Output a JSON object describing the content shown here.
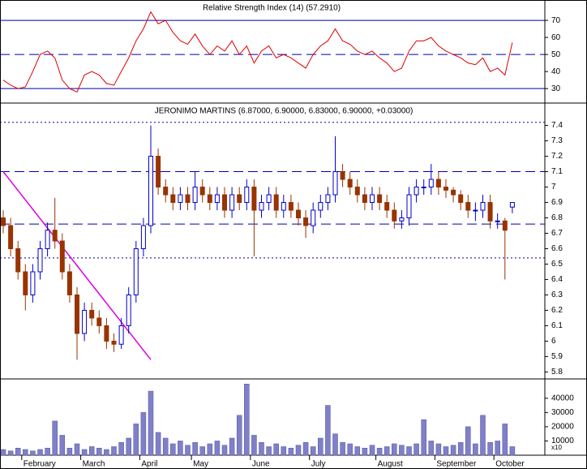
{
  "chart_data": [
    {
      "type": "line",
      "title": "Relative Strength Index (14) (57.2910)",
      "color": "#dd0000",
      "ylim": [
        22,
        81
      ],
      "yticks": [
        30,
        40,
        50,
        60,
        70
      ],
      "levels": [
        {
          "value": 70,
          "style": "solid"
        },
        {
          "value": 50,
          "style": "dashed"
        },
        {
          "value": 30,
          "style": "solid"
        }
      ],
      "values": [
        35,
        32,
        30,
        31,
        40,
        50,
        52,
        48,
        35,
        30,
        28,
        38,
        40,
        38,
        33,
        32,
        40,
        48,
        58,
        65,
        75,
        68,
        70,
        63,
        58,
        56,
        62,
        55,
        50,
        55,
        52,
        58,
        50,
        55,
        45,
        52,
        55,
        48,
        50,
        48,
        45,
        42,
        50,
        55,
        58,
        65,
        58,
        56,
        52,
        50,
        52,
        48,
        45,
        40,
        42,
        52,
        58,
        58,
        60,
        55,
        52,
        50,
        48,
        45,
        44,
        48,
        40,
        42,
        38,
        57
      ]
    },
    {
      "type": "candlestick",
      "title": "JERONIMO MARTINS (6.87000, 6.90000, 6.83000, 6.90000, +0.03000)",
      "up_color": "#0000cc",
      "down_color": "#993300",
      "ylim": [
        5.76,
        7.54
      ],
      "yticks": [
        5.8,
        5.9,
        6.0,
        6.1,
        6.2,
        6.3,
        6.4,
        6.5,
        6.6,
        6.7,
        6.8,
        6.9,
        7.0,
        7.1,
        7.2,
        7.3,
        7.4
      ],
      "levels": [
        {
          "value": 7.42,
          "style": "dotted"
        },
        {
          "value": 7.1,
          "style": "dashed"
        },
        {
          "value": 6.76,
          "style": "dashed"
        },
        {
          "value": 6.54,
          "style": "dotted"
        }
      ],
      "trendline": {
        "color": "#dd00dd",
        "x": [
          0,
          20
        ],
        "values": [
          7.1,
          5.88
        ]
      },
      "open": [
        6.8,
        6.75,
        6.6,
        6.45,
        6.3,
        6.45,
        6.6,
        6.72,
        6.65,
        6.45,
        6.3,
        6.05,
        6.2,
        6.15,
        6.1,
        6.0,
        5.98,
        6.1,
        6.3,
        6.6,
        6.75,
        7.2,
        7.0,
        6.95,
        6.9,
        6.95,
        6.9,
        7.0,
        6.95,
        6.9,
        6.95,
        6.85,
        6.95,
        6.9,
        7.0,
        6.85,
        6.9,
        6.95,
        6.85,
        6.9,
        6.85,
        6.8,
        6.75,
        6.85,
        6.9,
        6.95,
        7.1,
        7.05,
        7.0,
        6.95,
        6.9,
        6.95,
        6.9,
        6.85,
        6.78,
        6.8,
        6.95,
        7.0,
        7.0,
        7.05,
        7.0,
        6.98,
        6.95,
        6.9,
        6.85,
        6.85,
        6.9,
        6.78,
        6.78,
        6.87
      ],
      "high": [
        6.85,
        6.8,
        6.65,
        6.5,
        6.5,
        6.65,
        6.77,
        6.93,
        6.7,
        6.5,
        6.35,
        6.25,
        6.25,
        6.2,
        6.15,
        6.05,
        6.15,
        6.35,
        6.65,
        6.8,
        7.4,
        7.25,
        7.05,
        7.0,
        7.0,
        7.0,
        7.1,
        7.05,
        7.0,
        7.0,
        7.0,
        7.0,
        7.0,
        7.05,
        7.05,
        6.95,
        7.0,
        7.0,
        6.95,
        6.95,
        6.9,
        6.85,
        6.9,
        6.95,
        7.0,
        7.33,
        7.15,
        7.1,
        7.05,
        7.0,
        7.0,
        7.0,
        6.95,
        6.9,
        6.85,
        7.0,
        7.05,
        7.05,
        7.15,
        7.1,
        7.05,
        7.0,
        6.98,
        6.95,
        6.9,
        6.95,
        6.95,
        6.83,
        6.8,
        6.9
      ],
      "low": [
        6.7,
        6.55,
        6.4,
        6.2,
        6.25,
        6.4,
        6.55,
        6.6,
        6.4,
        6.25,
        5.88,
        6.0,
        6.1,
        6.05,
        5.95,
        5.93,
        5.95,
        6.05,
        6.25,
        6.55,
        6.7,
        6.95,
        6.9,
        6.85,
        6.85,
        6.85,
        6.85,
        6.9,
        6.85,
        6.85,
        6.8,
        6.8,
        6.85,
        6.85,
        6.55,
        6.8,
        6.85,
        6.8,
        6.8,
        6.8,
        6.75,
        6.67,
        6.7,
        6.8,
        6.85,
        6.9,
        7.0,
        6.95,
        6.9,
        6.85,
        6.85,
        6.85,
        6.8,
        6.73,
        6.73,
        6.75,
        6.9,
        6.95,
        6.95,
        6.95,
        6.93,
        6.9,
        6.85,
        6.8,
        6.78,
        6.8,
        6.73,
        6.73,
        6.4,
        6.83
      ],
      "close": [
        6.75,
        6.6,
        6.45,
        6.3,
        6.45,
        6.6,
        6.72,
        6.65,
        6.45,
        6.3,
        6.05,
        6.2,
        6.15,
        6.1,
        6.0,
        5.98,
        6.1,
        6.3,
        6.6,
        6.75,
        7.2,
        7.0,
        6.95,
        6.9,
        6.95,
        6.9,
        7.0,
        6.95,
        6.9,
        6.95,
        6.85,
        6.95,
        6.9,
        7.0,
        6.85,
        6.9,
        6.95,
        6.85,
        6.9,
        6.85,
        6.8,
        6.75,
        6.85,
        6.9,
        6.95,
        7.1,
        7.05,
        7.0,
        6.95,
        6.9,
        6.95,
        6.9,
        6.85,
        6.78,
        6.8,
        6.95,
        7.0,
        7.0,
        7.05,
        7.0,
        6.98,
        6.95,
        6.9,
        6.85,
        6.85,
        6.9,
        6.78,
        6.78,
        6.72,
        6.9
      ]
    },
    {
      "type": "bar",
      "color": "#8080c8",
      "unit_label": "x10",
      "ylim": [
        0,
        53000
      ],
      "yticks": [
        10000,
        20000,
        30000,
        40000
      ],
      "xticks": [
        {
          "value": 3,
          "label": "February"
        },
        {
          "value": 11,
          "label": "March"
        },
        {
          "value": 19,
          "label": "April"
        },
        {
          "value": 26,
          "label": "May"
        },
        {
          "value": 34,
          "label": "June"
        },
        {
          "value": 42,
          "label": "July"
        },
        {
          "value": 51,
          "label": "August"
        },
        {
          "value": 59,
          "label": "September"
        },
        {
          "value": 67,
          "label": "October"
        }
      ],
      "values": [
        4000,
        3000,
        5000,
        4000,
        3000,
        4000,
        5000,
        24000,
        14000,
        5000,
        8000,
        4000,
        6000,
        5000,
        4000,
        6000,
        9000,
        12000,
        22000,
        30000,
        45000,
        16000,
        12000,
        8000,
        10000,
        7000,
        9000,
        6000,
        8000,
        10000,
        7000,
        12000,
        28000,
        50000,
        14000,
        9000,
        6000,
        8000,
        6000,
        5000,
        7000,
        9000,
        6000,
        12000,
        35000,
        15000,
        9000,
        8000,
        6000,
        5000,
        7000,
        5000,
        6000,
        8000,
        7000,
        6000,
        8000,
        25000,
        10000,
        8000,
        6000,
        7000,
        9000,
        20000,
        8000,
        28000,
        9000,
        10000,
        22000,
        6000
      ]
    }
  ]
}
